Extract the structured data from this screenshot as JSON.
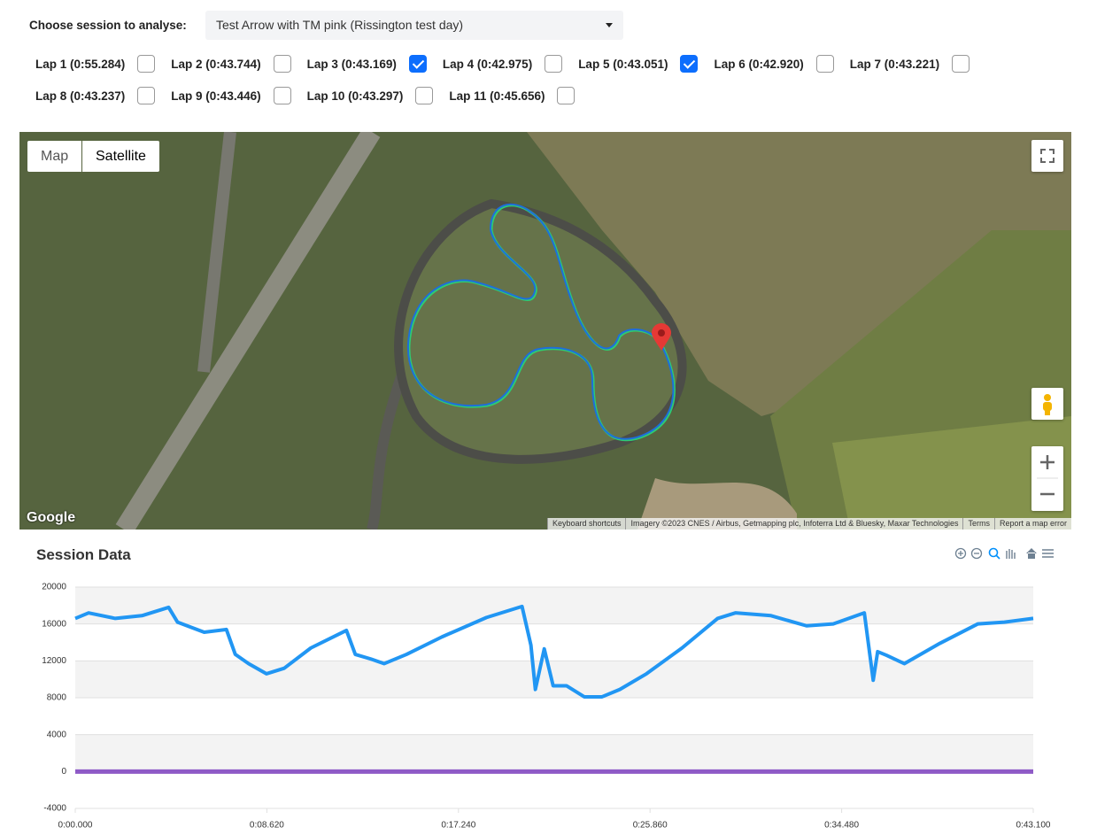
{
  "header": {
    "prompt": "Choose session to analyse:",
    "session": "Test Arrow with TM pink (Rissington test day)"
  },
  "laps": [
    {
      "label": "Lap 1 (0:55.284)",
      "checked": false
    },
    {
      "label": "Lap 2 (0:43.744)",
      "checked": false
    },
    {
      "label": "Lap 3 (0:43.169)",
      "checked": true
    },
    {
      "label": "Lap 4 (0:42.975)",
      "checked": false
    },
    {
      "label": "Lap 5 (0:43.051)",
      "checked": true
    },
    {
      "label": "Lap 6 (0:42.920)",
      "checked": false
    },
    {
      "label": "Lap 7 (0:43.221)",
      "checked": false
    },
    {
      "label": "Lap 8 (0:43.237)",
      "checked": false
    },
    {
      "label": "Lap 9 (0:43.446)",
      "checked": false
    },
    {
      "label": "Lap 10 (0:43.297)",
      "checked": false
    },
    {
      "label": "Lap 11 (0:45.656)",
      "checked": false
    }
  ],
  "map": {
    "buttons": [
      "Map",
      "Satellite"
    ],
    "logo": "Google",
    "attribution": [
      "Keyboard shortcuts",
      "Imagery ©2023 CNES / Airbus, Getmapping plc, Infoterra Ltd & Bluesky, Maxar Technologies",
      "Terms",
      "Report a map error"
    ]
  },
  "chart_data": {
    "type": "line",
    "title": "Session Data",
    "x": [
      0,
      0.6,
      1.8,
      3.0,
      4.2,
      4.6,
      5.8,
      6.8,
      7.2,
      7.8,
      8.6,
      9.4,
      10.6,
      12.2,
      12.6,
      13.3,
      13.9,
      14.9,
      16.5,
      18.5,
      20.1,
      20.5,
      20.7,
      21.1,
      21.5,
      22.1,
      22.9,
      23.7,
      24.5,
      25.7,
      27.3,
      28.9,
      29.7,
      31.3,
      32.9,
      34.1,
      35.5,
      35.9,
      36.1,
      36.5,
      37.3,
      38.9,
      40.6,
      41.8,
      43.1
    ],
    "series": [
      {
        "color": "#2196f3",
        "values": [
          16600,
          17200,
          16600,
          16900,
          17800,
          16200,
          15100,
          15400,
          12700,
          11700,
          10600,
          11200,
          13400,
          15300,
          12700,
          12200,
          11700,
          12700,
          14600,
          16700,
          17900,
          13700,
          8900,
          13300,
          9300,
          9300,
          8100,
          8100,
          8900,
          10600,
          13400,
          16600,
          17200,
          16900,
          15800,
          16000,
          17200,
          9900,
          13000,
          12600,
          11700,
          13900,
          16000,
          16200,
          16600
        ]
      },
      {
        "color": "#8e5ac6",
        "values": [
          0,
          0,
          0,
          0,
          0,
          0,
          0,
          0,
          0,
          0,
          0,
          0,
          0,
          0,
          0,
          0,
          0,
          0,
          0,
          0,
          0,
          0,
          0,
          0,
          0,
          0,
          0,
          0,
          0,
          0,
          0,
          0,
          0,
          0,
          0,
          0,
          0,
          0,
          0,
          0,
          0,
          0,
          0,
          0,
          0
        ]
      }
    ],
    "xlim": [
      0,
      43.1
    ],
    "xticks": [
      {
        "value": 0,
        "label": "0:00.000"
      },
      {
        "value": 8.62,
        "label": "0:08.620"
      },
      {
        "value": 17.24,
        "label": "0:17.240"
      },
      {
        "value": 25.86,
        "label": "0:25.860"
      },
      {
        "value": 34.48,
        "label": "0:34.480"
      },
      {
        "value": 43.1,
        "label": "0:43.100"
      }
    ],
    "ylim": [
      -4000,
      20000
    ],
    "yticks": [
      -4000,
      0,
      4000,
      8000,
      12000,
      16000,
      20000
    ],
    "grid": true
  }
}
